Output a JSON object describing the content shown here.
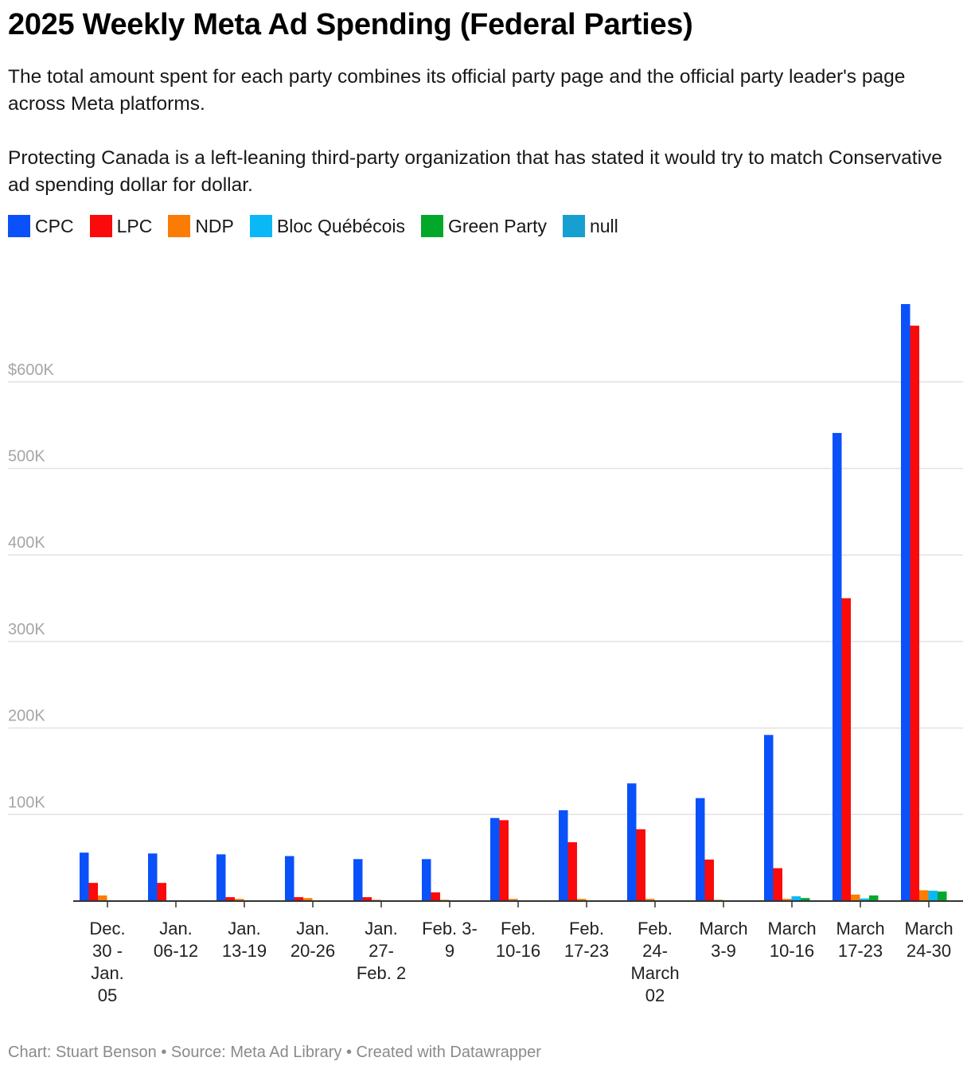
{
  "header": {
    "title": "2025 Weekly Meta Ad Spending (Federal Parties)",
    "description_1": "The total amount spent for each party combines its official party page and the official party leader's page across Meta platforms.",
    "description_2": "Protecting Canada is a left-leaning third-party organization that has stated it would try to match Conservative ad spending dollar for dollar."
  },
  "legend": [
    {
      "name": "CPC",
      "color": "#0a51fa"
    },
    {
      "name": "LPC",
      "color": "#fa0a0a"
    },
    {
      "name": "NDP",
      "color": "#fb7c05"
    },
    {
      "name": "Bloc Québécois",
      "color": "#0ab8f6"
    },
    {
      "name": "Green Party",
      "color": "#03a82b"
    },
    {
      "name": "null",
      "color": "#169fd1"
    }
  ],
  "footer": {
    "credit": "Chart: Stuart Benson • Source: Meta Ad Library • Created with Datawrapper"
  },
  "chart_data": {
    "type": "bar",
    "ylim": [
      0,
      700000
    ],
    "y_ticks": [
      {
        "value": 100000,
        "label": "100K"
      },
      {
        "value": 200000,
        "label": "200K"
      },
      {
        "value": 300000,
        "label": "300K"
      },
      {
        "value": 400000,
        "label": "400K"
      },
      {
        "value": 500000,
        "label": "500K"
      },
      {
        "value": 600000,
        "label": "$600K"
      }
    ],
    "grid": true,
    "legend_position": "top-left",
    "categories": [
      [
        "Dec.",
        "30 -",
        "Jan.",
        "05"
      ],
      [
        "Jan.",
        "06-12"
      ],
      [
        "Jan.",
        "13-19"
      ],
      [
        "Jan.",
        "20-26"
      ],
      [
        "Jan.",
        "27-",
        "Feb. 2"
      ],
      [
        "Feb. 3-",
        "9"
      ],
      [
        "Feb.",
        "10-16"
      ],
      [
        "Feb.",
        "17-23"
      ],
      [
        "Feb.",
        "24-",
        "March",
        "02"
      ],
      [
        "March",
        "3-9"
      ],
      [
        "March",
        "10-16"
      ],
      [
        "March",
        "17-23"
      ],
      [
        "March",
        "24-30"
      ]
    ],
    "series": [
      {
        "name": "CPC",
        "color": "#0a51fa",
        "values": [
          56000,
          55000,
          54000,
          52000,
          48500,
          48500,
          96000,
          105000,
          136000,
          119000,
          192000,
          541000,
          690000
        ]
      },
      {
        "name": "LPC",
        "color": "#fa0a0a",
        "values": [
          21000,
          21000,
          4500,
          4500,
          4500,
          10000,
          93500,
          68000,
          83000,
          48000,
          38000,
          350000,
          665000
        ]
      },
      {
        "name": "NDP",
        "color": "#fb7c05",
        "values": [
          6500,
          0,
          2500,
          3500,
          1500,
          1500,
          2500,
          2500,
          2500,
          1500,
          2500,
          7500,
          12500
        ]
      },
      {
        "name": "Bloc Québécois",
        "color": "#0ab8f6",
        "values": [
          0,
          0,
          0,
          0,
          0,
          0,
          0,
          0,
          0,
          0,
          5500,
          3000,
          12000
        ]
      },
      {
        "name": "Green Party",
        "color": "#03a82b",
        "values": [
          0,
          0,
          0,
          0,
          0,
          0,
          0,
          0,
          0,
          0,
          3500,
          6500,
          11000
        ]
      },
      {
        "name": "null",
        "color": "#169fd1",
        "values": [
          0,
          0,
          0,
          0,
          0,
          0,
          0,
          0,
          0,
          0,
          0,
          0,
          0
        ]
      }
    ]
  }
}
